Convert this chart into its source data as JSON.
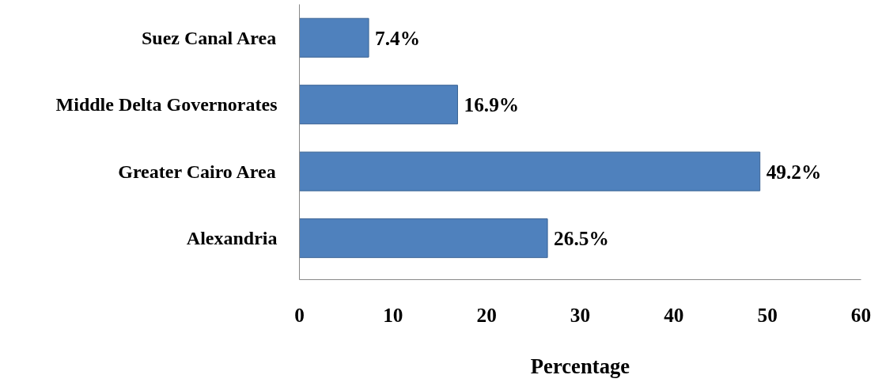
{
  "chart_data": {
    "type": "bar",
    "orientation": "horizontal",
    "xlabel": "Percentage",
    "categories": [
      "Suez Canal Area",
      "Middle Delta Governorates",
      "Greater Cairo Area",
      "Alexandria"
    ],
    "values": [
      7.4,
      16.9,
      49.2,
      26.5
    ],
    "value_labels": [
      "7.4%",
      "16.9%",
      "49.2%",
      "26.5%"
    ],
    "color": "#4f81bd",
    "xlim": [
      0,
      60
    ],
    "xticks": [
      0,
      10,
      20,
      30,
      40,
      50,
      60
    ],
    "grid": false
  }
}
